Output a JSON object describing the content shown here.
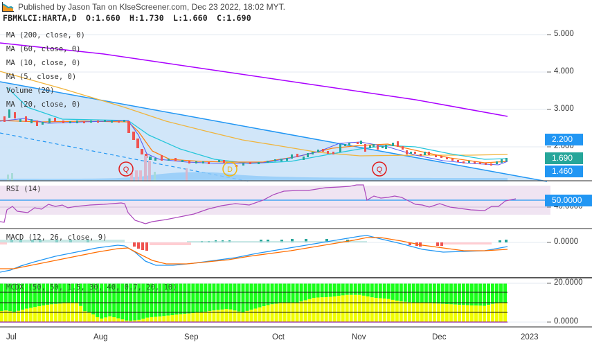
{
  "header": {
    "published": "Published by Jason Tan on KlseScreener.com, Dec 23 2022, 18:02 MYT.",
    "symbol": "FBMKLCI:HARTA,D",
    "open": "O:1.660",
    "high": "H:1.730",
    "low": "L:1.660",
    "close": "C:1.690"
  },
  "main_legend": [
    "MA (200, close, 0)",
    "MA (60, close, 0)",
    "MA (10, close, 0)",
    "MA (5, close, 0)",
    "Volume (20)",
    "MA (20, close, 0)"
  ],
  "price_axis": [
    "5.000",
    "4.000",
    "3.000",
    "2.000"
  ],
  "price_tags": {
    "upper": {
      "label": "2.200",
      "color": "#2196f3"
    },
    "last": {
      "label": "1.690",
      "color": "#26a69a"
    },
    "lower": {
      "label": "1.460",
      "color": "#2196f3"
    }
  },
  "markers": [
    {
      "label": "Q",
      "color": "#e01b1b"
    },
    {
      "label": "D",
      "color": "#f5b70a"
    },
    {
      "label": "Q",
      "color": "#e01b1b"
    }
  ],
  "rsi": {
    "legend": "RSI (14)",
    "tag": "50.0000",
    "axis": "40.0000"
  },
  "macd": {
    "legend": "MACD (12, 26, close, 9)",
    "axis": "0.0000"
  },
  "mcdx": {
    "legend": "MCDX (50, 50, 1.5, 30, 40, 0.7, 20, 10)",
    "axis_top": "20.0000",
    "axis_bottom": "0.0000"
  },
  "time_axis": [
    "Jul",
    "Aug",
    "Sep",
    "Oct",
    "Nov",
    "Dec",
    "2023"
  ],
  "colors": {
    "up": "#26a69a",
    "down": "#ef5350",
    "ma200": "#aa00ff",
    "ma60": "#f0b43c",
    "ma20": "#26c6da",
    "ma10": "#ff7f0e",
    "ma5": "#5b5bf0",
    "channel": "#2196f3",
    "rsi_line": "#ab47bc",
    "rsi_band": "#f0e4f2",
    "macd_line": "#2196f3",
    "signal_line": "#ff6d00",
    "mcdx_green": "#1aff1a",
    "mcdx_yellow": "#f0ff00"
  },
  "chart_data": [
    {
      "type": "candlestick",
      "title": "FBMKLCI:HARTA,D",
      "x": [
        "Jul",
        "Aug",
        "Sep",
        "Oct",
        "Nov",
        "Dec",
        "2023"
      ],
      "ylim": [
        1.3,
        5.3
      ],
      "last": {
        "open": 1.66,
        "high": 1.73,
        "low": 1.66,
        "close": 1.69
      },
      "approx_close_by_month": {
        "Jul": 2.7,
        "Aug": 2.65,
        "Sep": 1.55,
        "Oct": 1.6,
        "Nov": 2.05,
        "Dec": 1.62,
        "end": 1.69
      },
      "ma200_range": [
        4.8,
        2.85
      ],
      "channel_upper": [
        3.7,
        2.2
      ],
      "channel_lower": [
        2.6,
        1.46
      ],
      "annotations": [
        "Q (Aug)",
        "D (Sep)",
        "Q (Nov)"
      ]
    },
    {
      "type": "line",
      "title": "RSI (14)",
      "levels": [
        40,
        50
      ],
      "approx_values": {
        "Jul": 30,
        "Aug_start": 52,
        "Aug_mid": 24,
        "Sep": 33,
        "Oct": 50,
        "Nov": 60,
        "Dec": 38,
        "end": 50
      }
    },
    {
      "type": "line",
      "title": "MACD (12, 26, close, 9)",
      "zero_line": 0.0,
      "approx_values": {
        "Jul": -0.2,
        "Aug": -0.02,
        "Sep": -0.17,
        "Oct": -0.08,
        "Nov": 0.03,
        "Dec": -0.05,
        "end": -0.04
      }
    },
    {
      "type": "bar",
      "title": "MCDX (50, 50, 1.5, 30, 40, 0.7, 20, 10)",
      "ylim": [
        0,
        20
      ],
      "gridlines": [
        5,
        10,
        15
      ],
      "approx_yellow_values": {
        "Jul": 5,
        "Aug": 8,
        "Sep": 1,
        "Oct": 10,
        "Nov": 14,
        "Dec": 9,
        "end": 11
      }
    }
  ]
}
